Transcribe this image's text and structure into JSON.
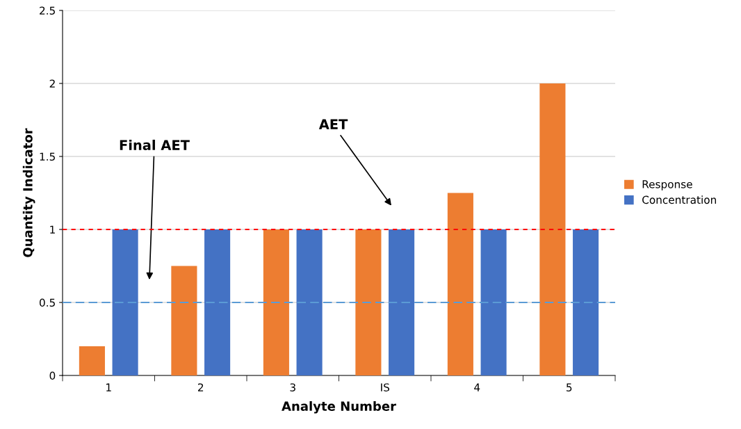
{
  "chart_data": {
    "type": "bar",
    "xlabel": "Analyte Number",
    "ylabel": "Quantity Indicator",
    "categories": [
      "1",
      "2",
      "3",
      "IS",
      "4",
      "5"
    ],
    "series": [
      {
        "name": "Response",
        "color": "#ed7d31",
        "values": [
          0.2,
          0.75,
          1,
          1,
          1.25,
          2
        ]
      },
      {
        "name": "Concentration",
        "color": "#4472c4",
        "values": [
          1,
          1,
          1,
          1,
          1,
          1
        ]
      }
    ],
    "ylim": [
      0,
      2.5
    ],
    "yticks": [
      0,
      0.5,
      1,
      1.5,
      2,
      2.5
    ],
    "grid": "y",
    "legend": "right",
    "ref_lines": [
      {
        "axis": "y",
        "value": 1,
        "color": "#ff0000",
        "line_style": "dotted"
      },
      {
        "axis": "y",
        "value": 0.5,
        "color": "#5b9bd5",
        "line_style": "dashed"
      }
    ],
    "annotations": [
      "AET",
      "Final AET"
    ]
  }
}
